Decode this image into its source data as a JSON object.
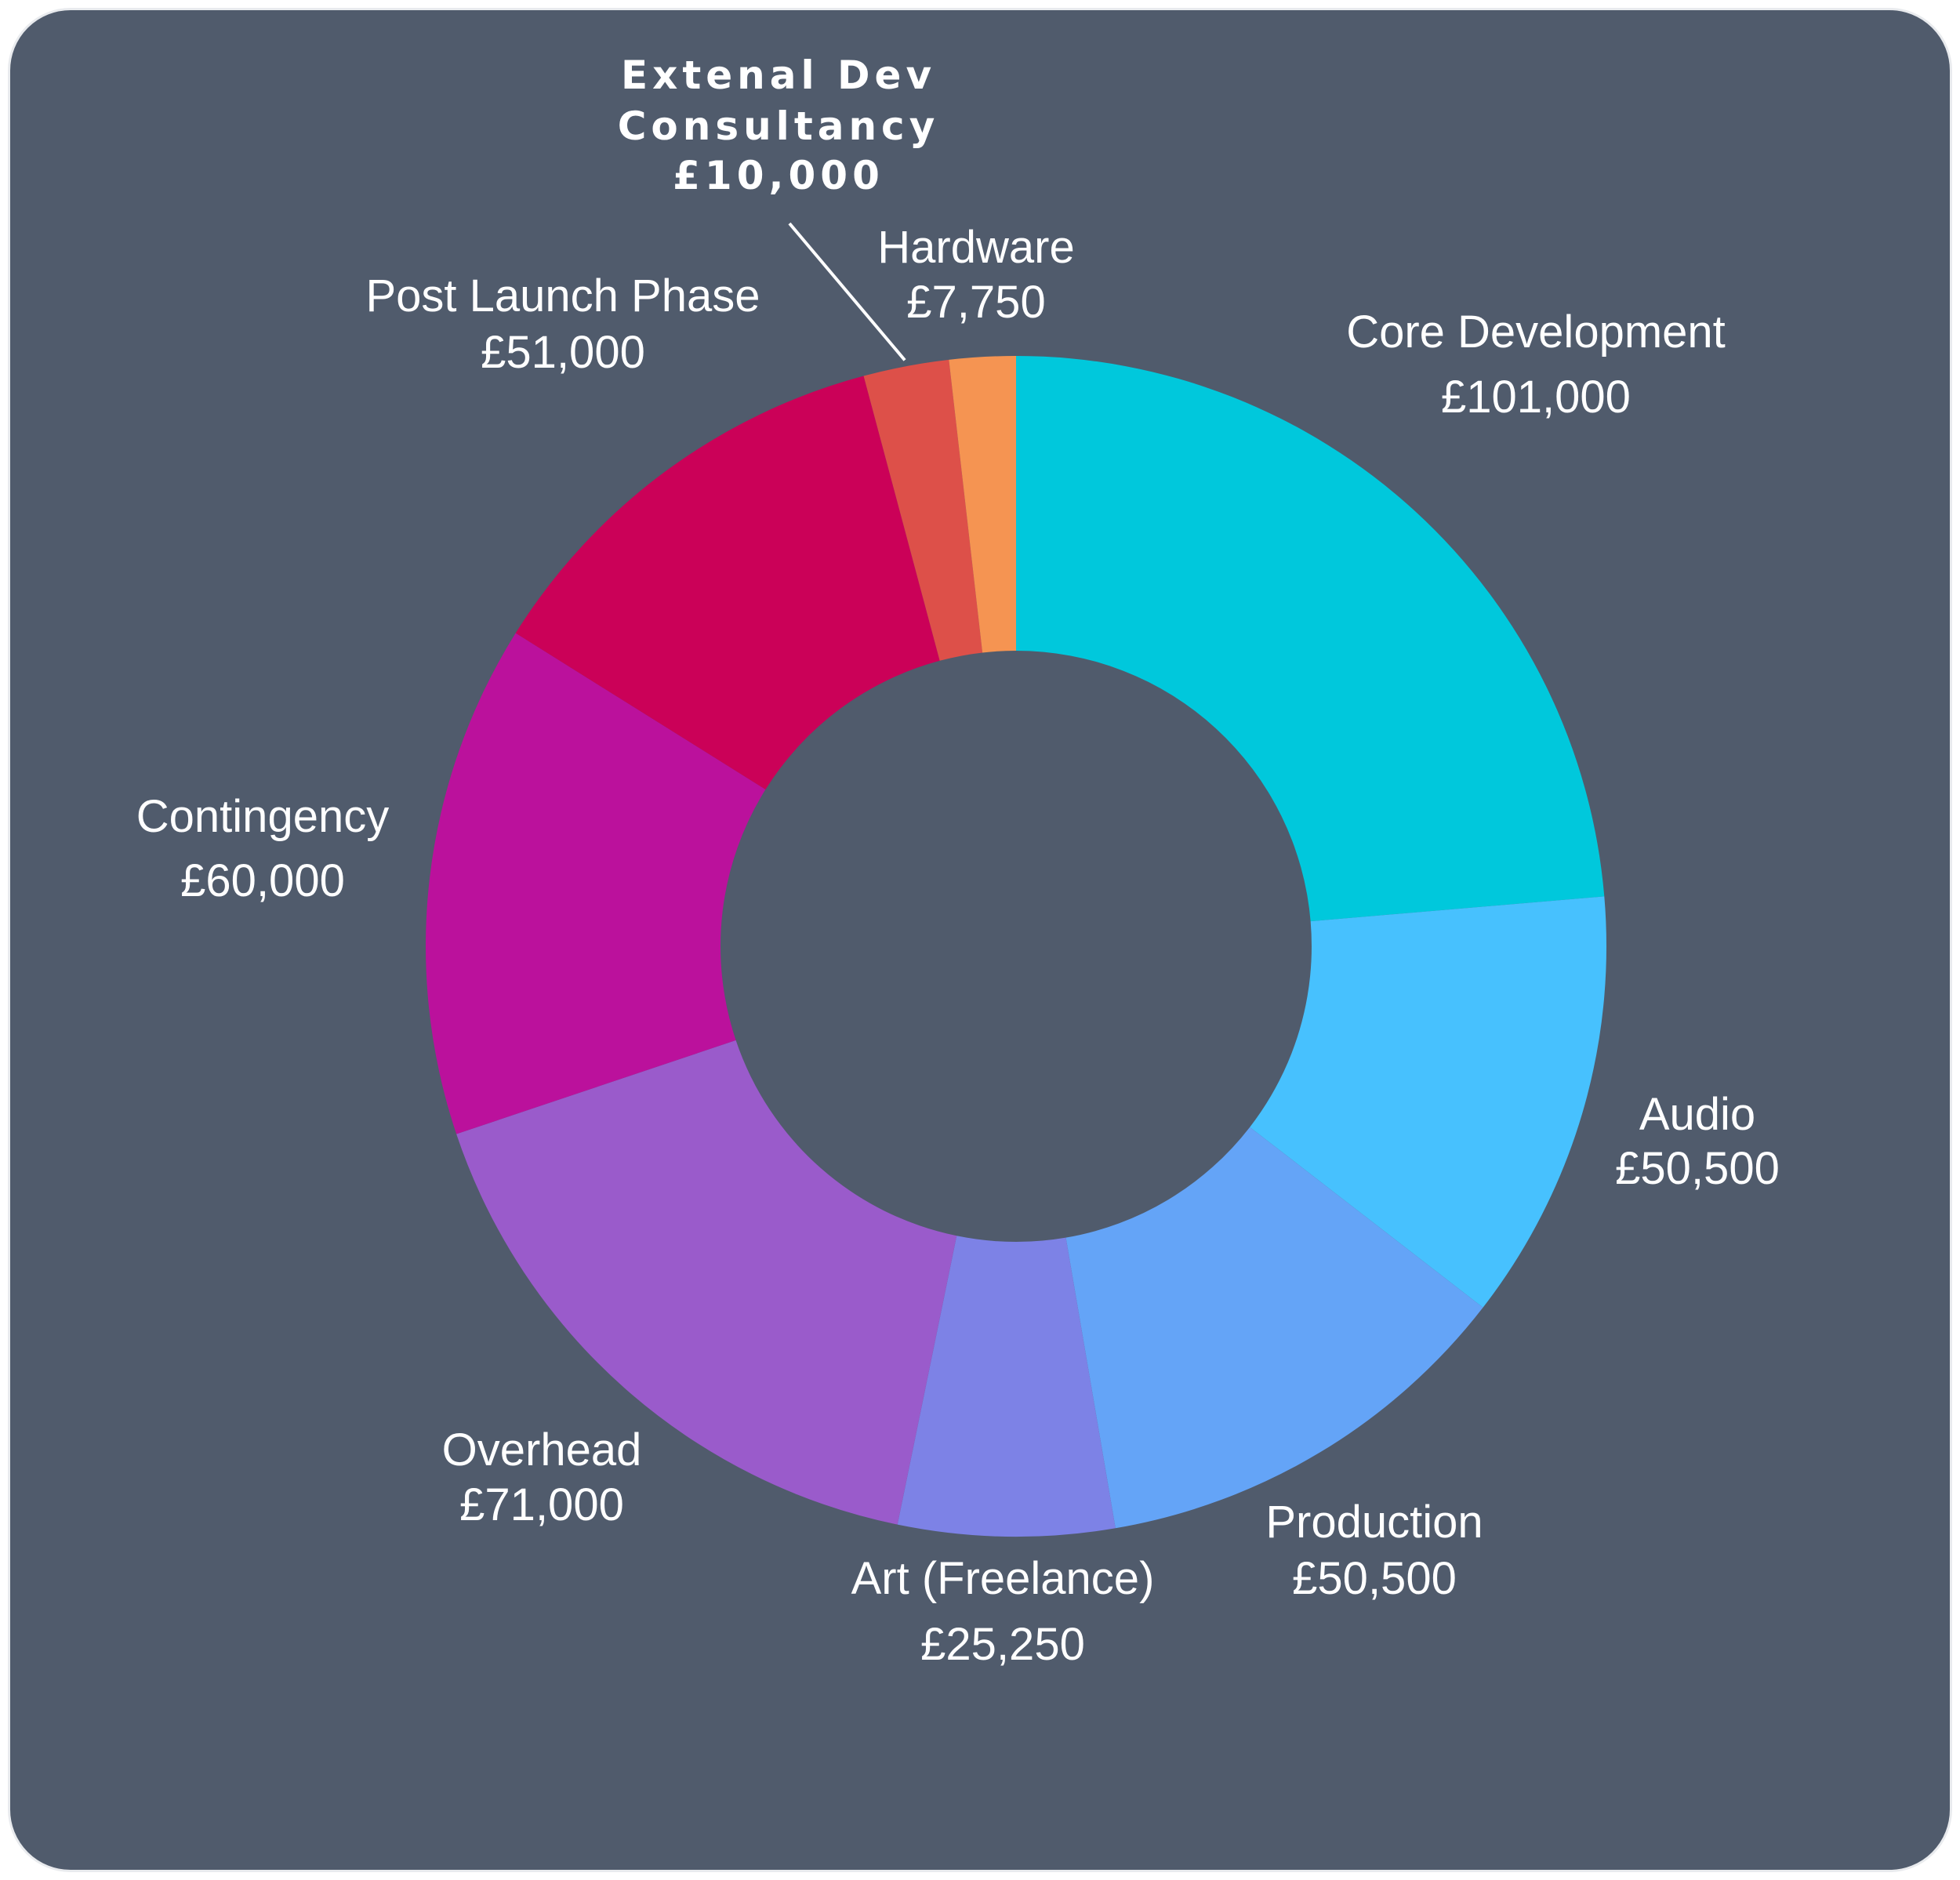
{
  "chart_data": {
    "type": "pie",
    "donut": true,
    "title": "",
    "currency": "£",
    "slices": [
      {
        "name": "Core Development",
        "value": 101000,
        "value_label": "£101,000",
        "color": "#00c8dc"
      },
      {
        "name": "Audio",
        "value": 50500,
        "value_label": "£50,500",
        "color": "#47c1fe"
      },
      {
        "name": "Production",
        "value": 50500,
        "value_label": "£50,500",
        "color": "#64a4f7"
      },
      {
        "name": "Art (Freelance)",
        "value": 25250,
        "value_label": "£25,250",
        "color": "#7d82e6"
      },
      {
        "name": "Overhead",
        "value": 71000,
        "value_label": "£71,000",
        "color": "#9a5bcb"
      },
      {
        "name": "Contingency",
        "value": 60000,
        "value_label": "£60,000",
        "color": "#bb119c"
      },
      {
        "name": "Post Launch Phase",
        "value": 51000,
        "value_label": "£51,000",
        "color": "#cb0158"
      },
      {
        "name_lines": [
          "Extenal Dev",
          "Consultancy"
        ],
        "name": "Extenal Dev Consultancy",
        "value": 10000,
        "value_label": "£10,000",
        "color": "#dd5049"
      },
      {
        "name": "Hardware",
        "value": 7750,
        "value_label": "£7,750",
        "color": "#f59452"
      }
    ],
    "legend": "none",
    "labels": "outside"
  },
  "colors": {
    "background": "#505b6c",
    "label_text": "#ffffff"
  }
}
